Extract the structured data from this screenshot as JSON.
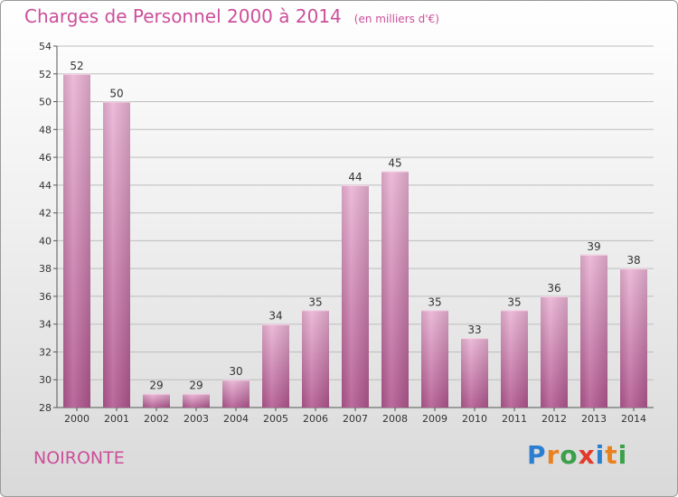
{
  "header": {
    "title": "Charges de Personnel 2000 à 2014",
    "subtitle": "(en milliers d'€)"
  },
  "footer": {
    "commune": "NOIRONTE",
    "logo_letters": [
      "P",
      "r",
      "o",
      "x",
      "i",
      "t",
      "i"
    ],
    "logo_colors": [
      "#2b7fd0",
      "#e8821e",
      "#3aa04a",
      "#e23a2b",
      "#2b7fd0",
      "#e8821e",
      "#3aa04a"
    ]
  },
  "colors": {
    "bar_light": "#eab3d4",
    "bar_dark": "#b1568f",
    "accent": "#cc4f9a"
  },
  "chart_data": {
    "type": "bar",
    "title": "Charges de Personnel 2000 à 2014",
    "subtitle": "(en milliers d'€)",
    "xlabel": "",
    "ylabel": "",
    "categories": [
      "2000",
      "2001",
      "2002",
      "2003",
      "2004",
      "2005",
      "2006",
      "2007",
      "2008",
      "2009",
      "2010",
      "2011",
      "2012",
      "2013",
      "2014"
    ],
    "values": [
      52,
      50,
      29,
      29,
      30,
      34,
      35,
      44,
      45,
      35,
      33,
      35,
      36,
      39,
      38
    ],
    "ylim": [
      28,
      54
    ],
    "yticks": [
      28,
      30,
      32,
      34,
      36,
      38,
      40,
      42,
      44,
      46,
      48,
      50,
      52,
      54
    ],
    "grid": true,
    "data_labels": true
  }
}
